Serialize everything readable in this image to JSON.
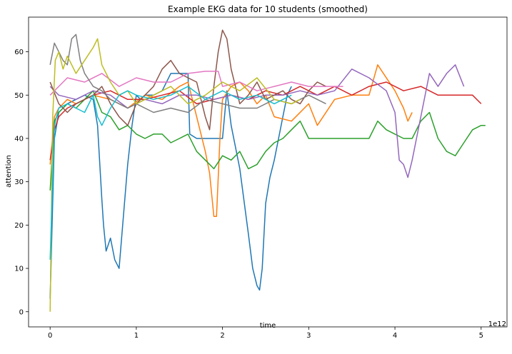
{
  "chart_data": {
    "type": "line",
    "title": "Example EKG data for 10 students (smoothed)",
    "xlabel": "time",
    "ylabel": "attention",
    "x_offset_label": "1e12",
    "xlim": [
      -0.25,
      5.3
    ],
    "ylim": [
      -3.5,
      68
    ],
    "xticks": [
      0,
      1,
      2,
      3,
      4,
      5
    ],
    "yticks": [
      0,
      10,
      20,
      30,
      40,
      50,
      60
    ],
    "grid": false,
    "legend": "none",
    "series": [
      {
        "color": "#1f77b4",
        "x": [
          0,
          0.05,
          0.1,
          0.2,
          0.3,
          0.4,
          0.5,
          0.55,
          0.6,
          0.62,
          0.65,
          0.7,
          0.75,
          0.8,
          0.85,
          0.9,
          0.95,
          1.0,
          1.05,
          1.1,
          1.2,
          1.3,
          1.4,
          1.5,
          1.6,
          1.62,
          1.7,
          1.8,
          1.9,
          2.0,
          2.05,
          2.1,
          2.2,
          2.3,
          2.35,
          2.4,
          2.43,
          2.46,
          2.5,
          2.55,
          2.6,
          2.65,
          2.7,
          2.75,
          2.8
        ],
        "y": [
          3,
          40,
          46,
          48,
          49,
          50,
          49,
          43,
          26,
          20,
          14,
          17,
          12,
          10,
          22,
          34,
          43,
          50,
          49,
          50,
          50,
          51,
          55,
          55,
          55,
          41,
          40,
          40,
          40,
          40,
          51,
          43,
          33,
          18,
          10,
          6,
          5,
          10,
          25,
          31,
          35,
          40,
          45,
          50,
          52
        ]
      },
      {
        "color": "#ff7f0e",
        "x": [
          0,
          0.05,
          0.1,
          0.2,
          0.3,
          0.5,
          0.7,
          0.9,
          1.1,
          1.3,
          1.5,
          1.6,
          1.7,
          1.8,
          1.85,
          1.9,
          1.93,
          1.97,
          2.0,
          2.1,
          2.2,
          2.3,
          2.4,
          2.5,
          2.6,
          2.8,
          3.0,
          3.1,
          3.3,
          3.5,
          3.7,
          3.8,
          4.0,
          4.1,
          4.15,
          4.2
        ],
        "y": [
          34,
          45,
          47,
          49,
          48,
          50,
          49,
          47,
          50,
          49,
          52,
          53,
          45,
          37,
          32,
          22,
          22,
          40,
          49,
          52,
          53,
          51,
          48,
          50,
          45,
          44,
          48,
          43,
          49,
          50,
          50,
          57,
          51,
          47,
          44,
          46
        ]
      },
      {
        "color": "#2ca02c",
        "x": [
          0,
          0.05,
          0.1,
          0.2,
          0.3,
          0.4,
          0.5,
          0.6,
          0.7,
          0.8,
          0.9,
          1.0,
          1.1,
          1.2,
          1.3,
          1.4,
          1.5,
          1.6,
          1.7,
          1.8,
          1.9,
          2.0,
          2.1,
          2.2,
          2.3,
          2.4,
          2.5,
          2.6,
          2.7,
          2.8,
          2.9,
          3.0,
          3.7,
          3.8,
          3.9,
          4.0,
          4.1,
          4.2,
          4.3,
          4.4,
          4.5,
          4.6,
          4.7,
          4.8,
          4.9,
          5.0,
          5.05
        ],
        "y": [
          28,
          44,
          46,
          48,
          47,
          49,
          51,
          46,
          45,
          42,
          43,
          41,
          40,
          41,
          41,
          39,
          40,
          41,
          37,
          35,
          33,
          36,
          35,
          37,
          33,
          34,
          37,
          39,
          40,
          42,
          44,
          40,
          40,
          44,
          42,
          41,
          40,
          40,
          44,
          46,
          40,
          37,
          36,
          39,
          42,
          43,
          43
        ]
      },
      {
        "color": "#d62728",
        "x": [
          0,
          0.05,
          0.1,
          0.2,
          0.3,
          0.4,
          0.5,
          0.7,
          0.9,
          1.1,
          1.3,
          1.5,
          1.7,
          1.9,
          2.1,
          2.3,
          2.5,
          2.7,
          2.9,
          3.1,
          3.3,
          3.5,
          3.7,
          3.9,
          4.1,
          4.3,
          4.5,
          4.7,
          4.9,
          5.0
        ],
        "y": [
          35,
          42,
          45,
          47,
          48,
          49,
          50,
          51,
          49,
          49,
          50,
          51,
          48,
          49,
          50,
          49,
          51,
          50,
          52,
          50,
          52,
          50,
          52,
          53,
          51,
          52,
          50,
          50,
          50,
          48
        ]
      },
      {
        "color": "#9467bd",
        "x": [
          0,
          0.1,
          0.3,
          0.5,
          0.7,
          0.9,
          1.1,
          1.3,
          1.5,
          1.7,
          1.9,
          2.1,
          2.3,
          2.5,
          2.7,
          2.9,
          3.1,
          3.3,
          3.5,
          3.7,
          3.9,
          4.0,
          4.05,
          4.1,
          4.15,
          4.2,
          4.3,
          4.4,
          4.5,
          4.6,
          4.7,
          4.8
        ],
        "y": [
          52,
          50,
          49,
          51,
          50,
          47,
          49,
          48,
          50,
          50,
          49,
          50,
          49,
          50,
          50,
          51,
          50,
          51,
          56,
          54,
          51,
          46,
          35,
          34,
          31,
          35,
          45,
          55,
          52,
          55,
          57,
          52
        ]
      },
      {
        "color": "#8c564b",
        "x": [
          0,
          0.1,
          0.2,
          0.3,
          0.5,
          0.6,
          0.7,
          0.8,
          0.9,
          1.0,
          1.1,
          1.2,
          1.3,
          1.4,
          1.5,
          1.6,
          1.7,
          1.8,
          1.85,
          1.9,
          1.95,
          2.0,
          2.05,
          2.1,
          2.2,
          2.3,
          2.4,
          2.5,
          2.6,
          2.7,
          2.8,
          2.9,
          3.0,
          3.1,
          3.2
        ],
        "y": [
          53,
          48,
          46,
          48,
          50,
          52,
          48,
          45,
          43,
          48,
          50,
          52,
          56,
          58,
          55,
          54,
          53,
          45,
          42,
          52,
          60,
          65,
          63,
          56,
          48,
          50,
          53,
          49,
          50,
          51,
          49,
          48,
          51,
          53,
          52
        ]
      },
      {
        "color": "#e377c2",
        "x": [
          0,
          0.05,
          0.1,
          0.2,
          0.4,
          0.6,
          0.8,
          1.0,
          1.2,
          1.4,
          1.6,
          1.8,
          1.95,
          2.0,
          2.2,
          2.4,
          2.6,
          2.8,
          3.0,
          3.2,
          3.4
        ],
        "y": [
          50,
          51,
          52,
          54,
          53,
          55,
          52,
          54,
          53,
          53,
          55,
          55.5,
          55.5,
          52,
          53,
          51,
          52,
          53,
          52,
          52,
          52
        ]
      },
      {
        "color": "#7f7f7f",
        "x": [
          0,
          0.05,
          0.1,
          0.15,
          0.2,
          0.25,
          0.3,
          0.35,
          0.4,
          0.5,
          0.6,
          0.7,
          0.8,
          0.9,
          1.0,
          1.2,
          1.4,
          1.6,
          1.8,
          2.0,
          2.2,
          2.4,
          2.6,
          2.8,
          3.0,
          3.2
        ],
        "y": [
          57,
          62,
          60,
          58,
          57,
          63,
          64,
          58,
          55,
          52,
          51,
          49,
          48,
          47,
          48,
          46,
          47,
          46,
          49,
          48,
          47,
          47,
          49,
          48,
          50,
          48
        ]
      },
      {
        "color": "#bcbd22",
        "x": [
          0,
          0.03,
          0.06,
          0.1,
          0.15,
          0.2,
          0.3,
          0.4,
          0.5,
          0.55,
          0.6,
          0.7,
          0.8,
          0.9,
          1.0,
          1.2,
          1.4,
          1.6,
          1.8,
          2.0,
          2.2,
          2.4,
          2.6,
          2.8,
          2.9
        ],
        "y": [
          0,
          45,
          58,
          60,
          56,
          59,
          55,
          58,
          61,
          63,
          57,
          53,
          50,
          51,
          48,
          50,
          52,
          48,
          50,
          53,
          51,
          54,
          49,
          48,
          49
        ]
      },
      {
        "color": "#17becf",
        "x": [
          0,
          0.05,
          0.1,
          0.2,
          0.3,
          0.4,
          0.5,
          0.55,
          0.6,
          0.7,
          0.8,
          0.9,
          1.0,
          1.2,
          1.4,
          1.6,
          1.8,
          2.0,
          2.2,
          2.4,
          2.6,
          2.8
        ],
        "y": [
          12,
          43,
          47,
          48,
          47,
          46,
          50,
          45,
          43,
          47,
          50,
          51,
          50,
          49,
          50,
          52,
          49,
          51,
          49,
          50,
          48,
          50
        ]
      }
    ]
  }
}
